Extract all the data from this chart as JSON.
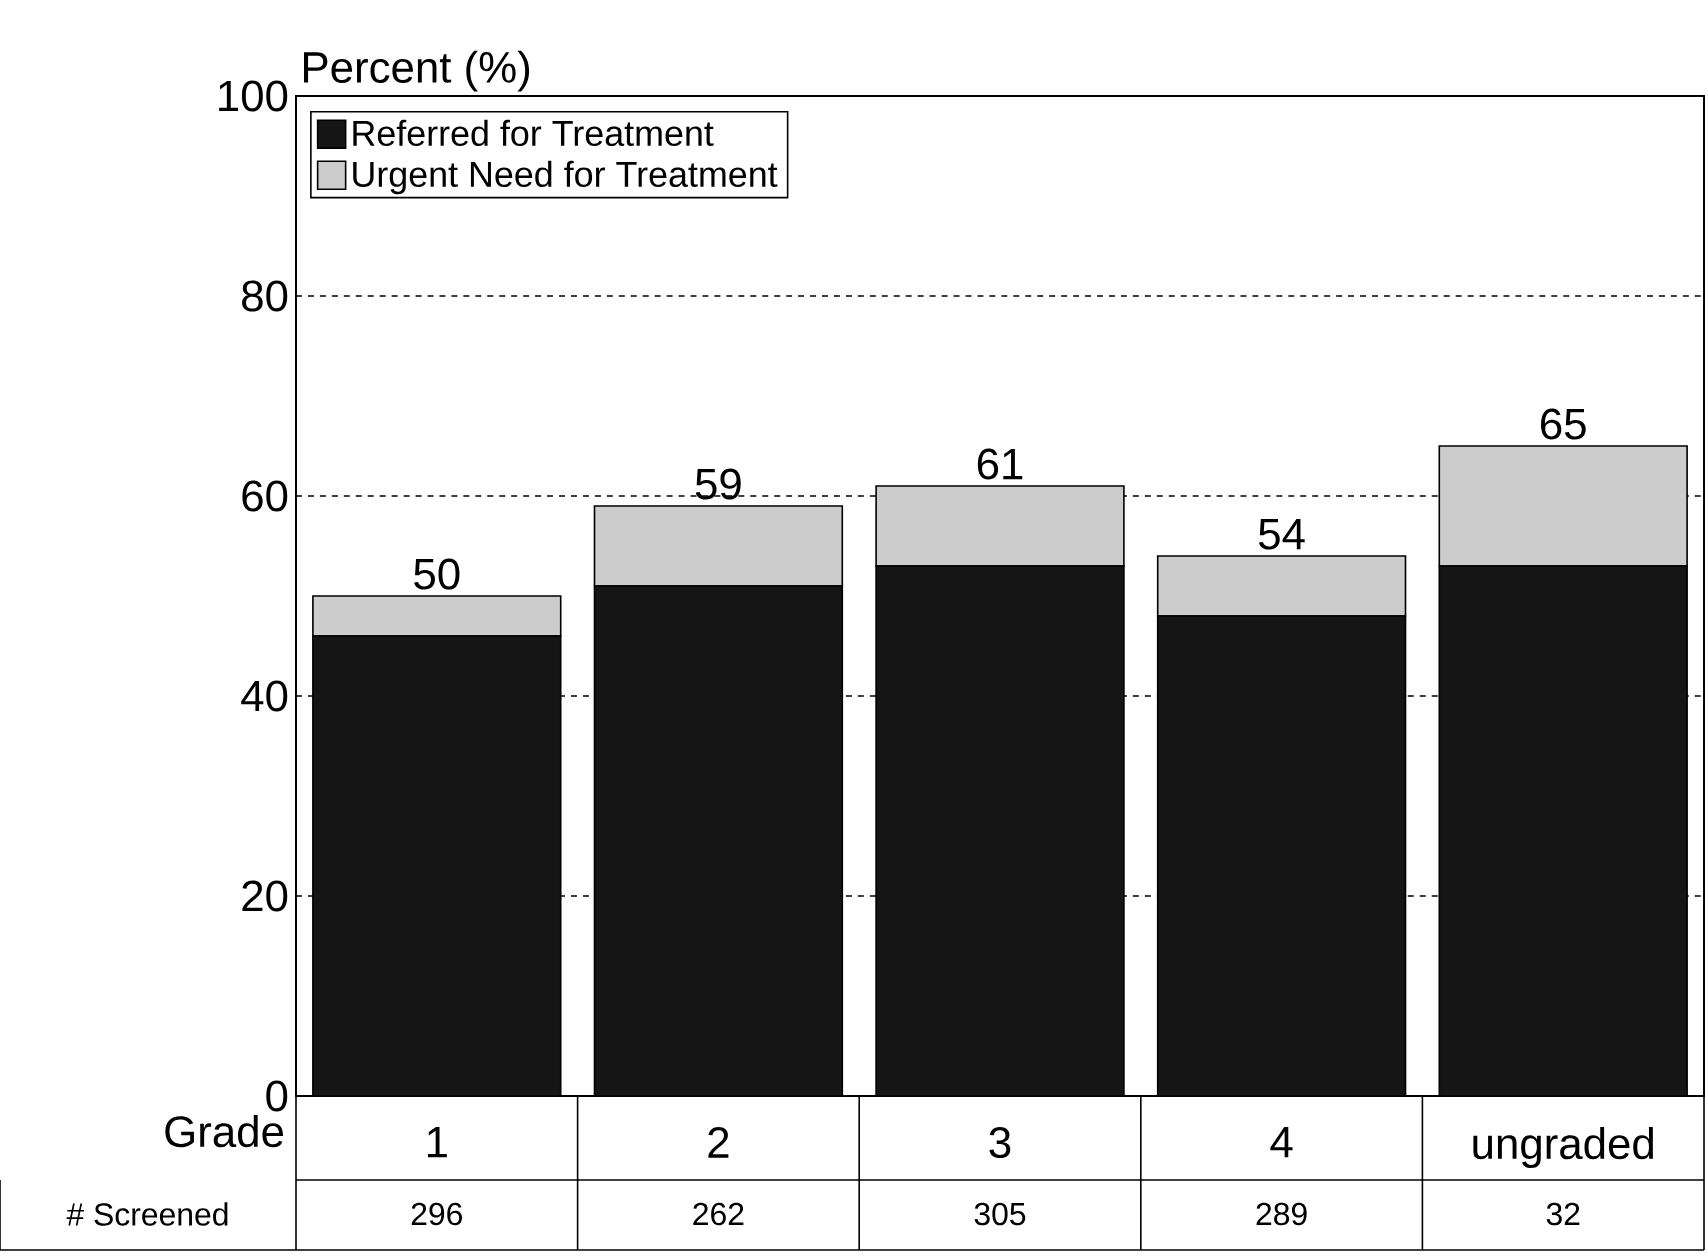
{
  "chart_data": {
    "type": "bar",
    "stacked": true,
    "xlabel": "Grade",
    "ylabel": "Percent (%)",
    "categories": [
      "1",
      "2",
      "3",
      "4",
      "ungraded"
    ],
    "series": [
      {
        "name": "Referred for Treatment",
        "color": "#151515",
        "values": [
          46,
          51,
          53,
          48,
          53
        ]
      },
      {
        "name": "Urgent Need for Treatment",
        "color": "#cccccc",
        "values": [
          4,
          8,
          8,
          6,
          12
        ]
      }
    ],
    "totals": [
      "50",
      "59",
      "61",
      "54",
      "65"
    ],
    "ylim": [
      0,
      100
    ],
    "yticks": [
      0,
      20,
      40,
      60,
      80,
      100
    ],
    "grid": "y",
    "line_style": "dashed",
    "legend": "top left",
    "annotations": [
      "# Screened",
      "296",
      "262",
      "305",
      "289",
      "32"
    ]
  }
}
